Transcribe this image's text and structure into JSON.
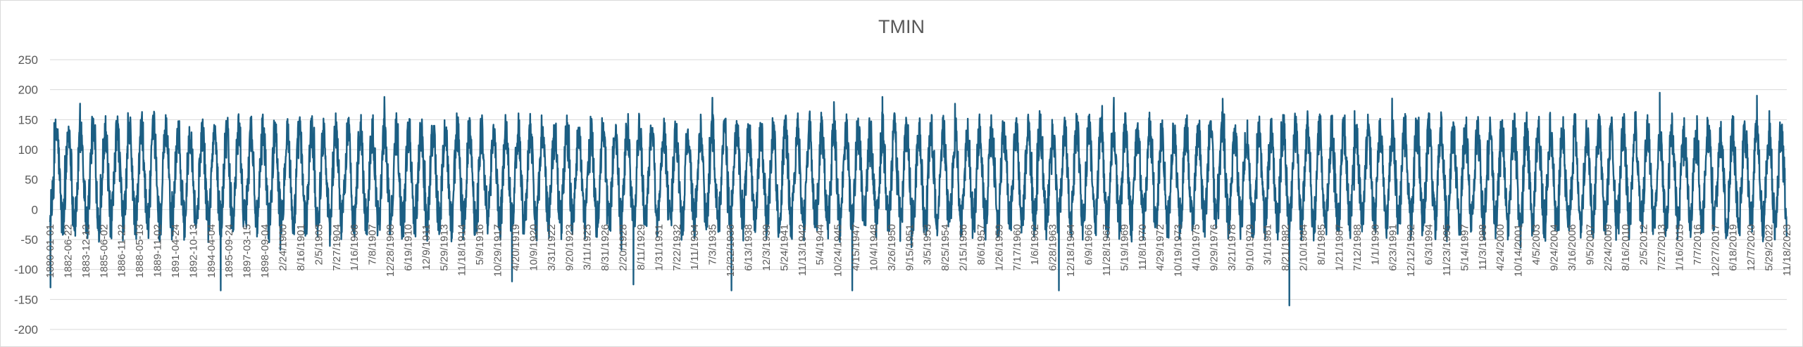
{
  "chart_data": {
    "type": "line",
    "title": "TMIN",
    "xlabel": "",
    "ylabel": "",
    "ylim": [
      -200,
      250
    ],
    "yticks": [
      -200,
      -150,
      -100,
      -50,
      0,
      50,
      100,
      150,
      200,
      250
    ],
    "grid": "horizontal",
    "legend": "none",
    "line_color": "#1b5e83",
    "x_range": [
      "1880-01-01",
      "2022-12-31"
    ],
    "seasonal_pattern": {
      "winter_low_typical": -20,
      "winter_trough_extreme_typical": -60,
      "summer_high_typical": 130,
      "summer_peak_typical": 155
    },
    "notable_points": [
      {
        "x": "1880-01-15",
        "y": -130
      },
      {
        "x": "1894-01-20",
        "y": -135
      },
      {
        "x": "1918-01-15",
        "y": -120
      },
      {
        "x": "1928-01-15",
        "y": -125
      },
      {
        "x": "1936-02-10",
        "y": -135
      },
      {
        "x": "1946-01-20",
        "y": -135
      },
      {
        "x": "1963-01-25",
        "y": -135
      },
      {
        "x": "1982-01-15",
        "y": -160
      },
      {
        "x": "2012-07-15",
        "y": 195
      },
      {
        "x": "2020-07-15",
        "y": 190
      },
      {
        "x": "1948-07-15",
        "y": 188
      },
      {
        "x": "1976-07-20",
        "y": 185
      }
    ],
    "x_tick_labels": [
      "1880-01-01",
      "1882-06-22",
      "1883-12-12",
      "1885-06-02",
      "1886-11-22",
      "1888-05-13",
      "1889-11-02",
      "1891-04-24",
      "1892-10-13",
      "1894-04-04",
      "1895-09-24",
      "1897-03-15",
      "1898-09-04",
      "2/24/1900",
      "8/16/1901",
      "2/5/1903",
      "7/27/1904",
      "1/16/1906",
      "7/8/1907",
      "12/28/1908",
      "6/19/1910",
      "12/9/1911",
      "5/29/1913",
      "11/18/1914",
      "5/9/1916",
      "10/29/1917",
      "4/20/1919",
      "10/9/1920",
      "3/31/1922",
      "9/20/1923",
      "3/11/1925",
      "8/31/1926",
      "2/20/1928",
      "8/11/1929",
      "1/31/1931",
      "7/22/1932",
      "1/11/1934",
      "7/3/1935",
      "12/22/1936",
      "6/13/1938",
      "12/3/1939",
      "5/24/1941",
      "11/13/1942",
      "5/4/1944",
      "10/24/1945",
      "4/15/1947",
      "10/4/1948",
      "3/26/1950",
      "9/15/1951",
      "3/5/1953",
      "8/25/1954",
      "2/15/1956",
      "8/6/1957",
      "1/26/1959",
      "7/17/1960",
      "1/6/1962",
      "6/28/1963",
      "12/18/1964",
      "6/9/1966",
      "11/28/1967",
      "5/19/1969",
      "11/8/1970",
      "4/29/1972",
      "10/19/1973",
      "4/10/1975",
      "9/29/1976",
      "3/21/1978",
      "9/10/1979",
      "3/1/1981",
      "8/21/1982",
      "2/10/1984",
      "8/1/1985",
      "1/21/1987",
      "7/12/1988",
      "1/1/1990",
      "6/23/1991",
      "12/12/1992",
      "6/3/1994",
      "11/23/1995",
      "5/14/1997",
      "11/3/1998",
      "4/24/2000",
      "10/14/2001",
      "4/5/2003",
      "9/24/2004",
      "3/16/2006",
      "9/5/2007",
      "2/24/2009",
      "8/16/2010",
      "2/5/2012",
      "7/27/2013",
      "1/16/2015",
      "7/7/2016",
      "12/27/2017",
      "6/18/2019",
      "12/7/2020",
      "5/29/2022",
      "11/18/2023"
    ]
  }
}
